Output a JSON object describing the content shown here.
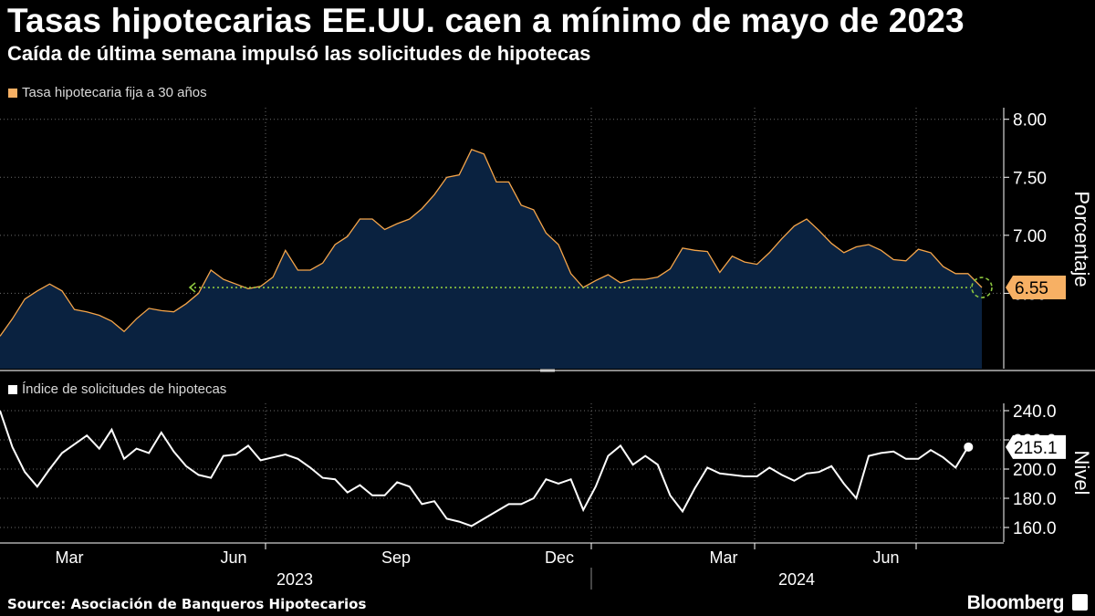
{
  "title": "Tasas hipotecarias EE.UU. caen a mínimo de mayo de 2023",
  "subtitle": "Caída de última semana impulsó las solicitudes de hipotecas",
  "source": "Source: Asociación de Banqueros Hipotecarios",
  "brand": "Bloomberg",
  "colors": {
    "background": "#000000",
    "rate_fill": "#0a2240",
    "rate_line": "#f5a54a",
    "rate_badge": "#f7b064",
    "index_line": "#ffffff",
    "marker": "#8cc63f",
    "grid": "#6b6b6b"
  },
  "chart_data": [
    {
      "type": "area",
      "title": "Tasa hipotecaria fija a 30 años",
      "legend": "Tasa hipotecaria fija a 30 años",
      "ylabel": "Porcentaje",
      "ylim": [
        5.85,
        8.1
      ],
      "yticks": [
        8.0,
        7.5,
        7.0,
        6.5
      ],
      "ytick_labels": [
        "8.00",
        "7.50",
        "7.00",
        "6.50"
      ],
      "last_value_label": "6.55",
      "annotation": "flecha punteada desde el último valor hasta el mínimo de mayo de 2023",
      "x_start": "2023-01-27",
      "x_step_days": 7,
      "values": [
        6.13,
        6.28,
        6.45,
        6.52,
        6.58,
        6.52,
        6.36,
        6.34,
        6.31,
        6.26,
        6.17,
        6.28,
        6.37,
        6.35,
        6.34,
        6.41,
        6.5,
        6.7,
        6.62,
        6.58,
        6.54,
        6.56,
        6.64,
        6.87,
        6.7,
        6.7,
        6.76,
        6.92,
        6.99,
        7.14,
        7.14,
        7.05,
        7.1,
        7.14,
        7.23,
        7.35,
        7.5,
        7.52,
        7.74,
        7.7,
        7.46,
        7.46,
        7.26,
        7.22,
        7.02,
        6.92,
        6.67,
        6.55,
        6.61,
        6.66,
        6.59,
        6.62,
        6.62,
        6.64,
        6.71,
        6.89,
        6.87,
        6.86,
        6.68,
        6.82,
        6.77,
        6.75,
        6.85,
        6.97,
        7.08,
        7.14,
        7.04,
        6.93,
        6.85,
        6.9,
        6.92,
        6.87,
        6.79,
        6.78,
        6.88,
        6.85,
        6.73,
        6.67,
        6.67,
        6.55
      ],
      "last_x": 1076
    },
    {
      "type": "line",
      "title": "Índice de solicitudes de hipotecas",
      "legend": "Índice de solicitudes de hipotecas",
      "ylabel": "Nivel",
      "ylim": [
        150,
        245
      ],
      "yticks": [
        240,
        220,
        200,
        180,
        160
      ],
      "ytick_labels": [
        "240.0",
        "220.0",
        "200.0",
        "180.0",
        "160.0"
      ],
      "last_value_label": "215.1",
      "x_start": "2023-01-27",
      "x_step_days": 7,
      "values": [
        240,
        215,
        198,
        188,
        200,
        211,
        217,
        223,
        214,
        227,
        207,
        214,
        211,
        225,
        212,
        202,
        196,
        194,
        209,
        210,
        216,
        206,
        208,
        210,
        207,
        201,
        194,
        193,
        184,
        189,
        182,
        182,
        191,
        188,
        176,
        178,
        166,
        164,
        161,
        166,
        171,
        176,
        176,
        180,
        193,
        190,
        193,
        172,
        188,
        209,
        216,
        203,
        209,
        203,
        182,
        171,
        187,
        201,
        197,
        196,
        195,
        195,
        201,
        196,
        192,
        197,
        198,
        202,
        190,
        180,
        209,
        211,
        212,
        207,
        207,
        213,
        208,
        201,
        215.1
      ]
    }
  ],
  "x_axis": {
    "months": [
      "Mar",
      "Jun",
      "Sep",
      "Dec",
      "Mar",
      "Jun"
    ],
    "years": [
      "2023",
      "2024"
    ]
  }
}
